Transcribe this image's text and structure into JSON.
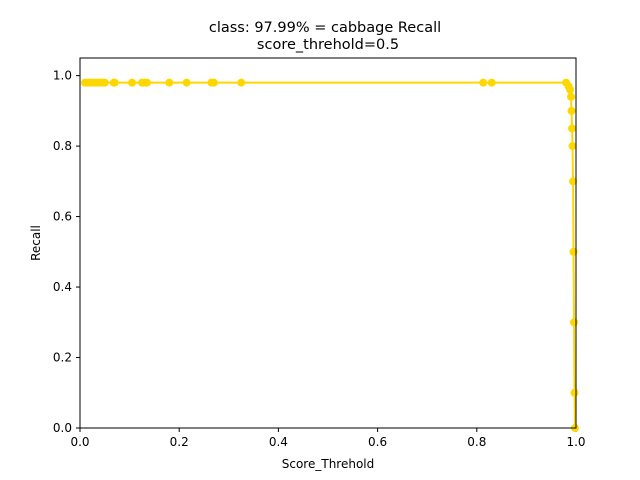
{
  "chart_data": {
    "type": "line",
    "title_line1": "class: 97.99% = cabbage Recall",
    "title_line2": "score_threhold=0.5",
    "xlabel": "Score_Threhold",
    "ylabel": "Recall",
    "xlim": [
      0.0,
      1.0
    ],
    "ylim": [
      0.0,
      1.05
    ],
    "x_ticks": [
      "0.0",
      "0.2",
      "0.4",
      "0.6",
      "0.8",
      "1.0"
    ],
    "y_ticks": [
      "0.0",
      "0.2",
      "0.4",
      "0.6",
      "0.8",
      "1.0"
    ],
    "grid": false,
    "series_color": "#FFD700",
    "series": [
      {
        "points": [
          [
            0.01,
            0.98
          ],
          [
            0.015,
            0.98
          ],
          [
            0.02,
            0.98
          ],
          [
            0.025,
            0.98
          ],
          [
            0.03,
            0.98
          ],
          [
            0.035,
            0.98
          ],
          [
            0.04,
            0.98
          ],
          [
            0.045,
            0.98
          ],
          [
            0.05,
            0.98
          ],
          [
            0.068,
            0.98
          ],
          [
            0.07,
            0.98
          ],
          [
            0.105,
            0.98
          ],
          [
            0.125,
            0.98
          ],
          [
            0.13,
            0.98
          ],
          [
            0.135,
            0.98
          ],
          [
            0.18,
            0.98
          ],
          [
            0.215,
            0.98
          ],
          [
            0.265,
            0.98
          ],
          [
            0.27,
            0.98
          ],
          [
            0.325,
            0.98
          ],
          [
            0.813,
            0.98
          ],
          [
            0.83,
            0.98
          ],
          [
            0.98,
            0.98
          ],
          [
            0.985,
            0.97
          ],
          [
            0.988,
            0.96
          ],
          [
            0.99,
            0.94
          ],
          [
            0.991,
            0.9
          ],
          [
            0.992,
            0.85
          ],
          [
            0.993,
            0.8
          ],
          [
            0.994,
            0.7
          ],
          [
            0.995,
            0.5
          ],
          [
            0.996,
            0.3
          ],
          [
            0.997,
            0.1
          ],
          [
            0.998,
            0.0
          ]
        ]
      }
    ]
  }
}
